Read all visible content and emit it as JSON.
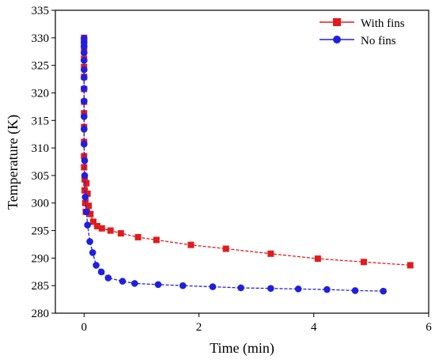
{
  "chart_data": {
    "type": "line",
    "xlabel": "Time (min)",
    "ylabel": "Temperature (K)",
    "xlim": [
      -0.5,
      6
    ],
    "ylim": [
      280,
      335
    ],
    "x_ticks": [
      "0",
      "2",
      "4",
      "6"
    ],
    "y_ticks": [
      "280",
      "285",
      "290",
      "295",
      "300",
      "305",
      "310",
      "315",
      "320",
      "325",
      "330",
      "335"
    ],
    "legend_position": "top-right",
    "series": [
      {
        "name": "With fins",
        "color": "#e31a1c",
        "marker": "square",
        "x": [
          0,
          0,
          0,
          0,
          0,
          0,
          0,
          0,
          0,
          0,
          0,
          0,
          0,
          0,
          0.01,
          0.01,
          0.02,
          0.03,
          0.04,
          0.06,
          0.08,
          0.11,
          0.16,
          0.23,
          0.31,
          0.46,
          0.64,
          0.94,
          1.26,
          1.86,
          2.47,
          3.25,
          4.07,
          4.87,
          5.68
        ],
        "y": [
          330,
          329.3,
          328.5,
          327.5,
          326.2,
          324.7,
          322.9,
          320.7,
          318.4,
          316.3,
          313.8,
          311.1,
          308.5,
          306.5,
          304.3,
          302.3,
          300,
          298.4,
          303.6,
          301.7,
          299.5,
          298,
          296.6,
          295.8,
          295.4,
          295,
          294.5,
          293.8,
          293.3,
          292.4,
          291.7,
          290.8,
          289.9,
          289.3,
          288.7
        ]
      },
      {
        "name": "No fins",
        "color": "#1f1fdf",
        "marker": "circle",
        "x": [
          0,
          0,
          0,
          0,
          0,
          0,
          0,
          0,
          0,
          0,
          0,
          0,
          0.01,
          0.01,
          0.02,
          0.04,
          0.06,
          0.1,
          0.15,
          0.21,
          0.3,
          0.42,
          0.67,
          0.88,
          1.29,
          1.72,
          2.24,
          2.73,
          3.25,
          3.73,
          4.23,
          4.72,
          5.21
        ],
        "y": [
          329.9,
          329.2,
          328.4,
          327.3,
          325.9,
          324.2,
          322.8,
          320.8,
          318.5,
          315.7,
          313.4,
          310.7,
          307.7,
          305,
          301.1,
          298.4,
          296,
          293,
          291,
          288.7,
          287.5,
          286.4,
          285.8,
          285.4,
          285.2,
          285,
          284.8,
          284.6,
          284.5,
          284.4,
          284.3,
          284.1,
          284
        ]
      }
    ]
  }
}
